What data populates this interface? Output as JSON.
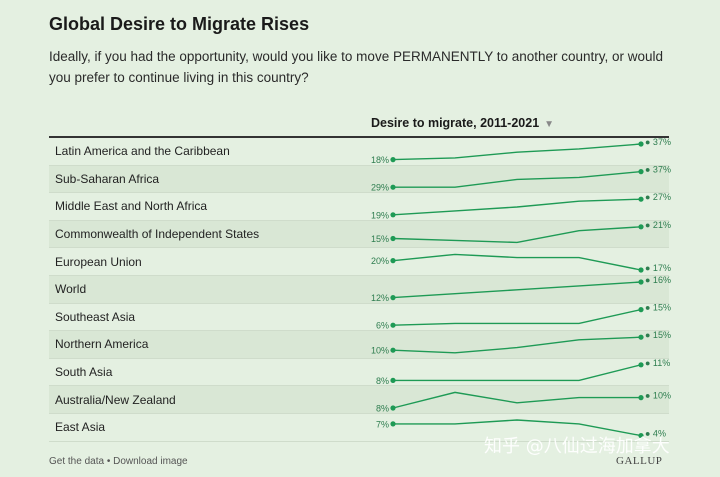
{
  "title": "Global Desire to Migrate Rises",
  "subtitle": "Ideally, if you had the opportunity, would you like to move PERMANENTLY to another country, or would you prefer to continue living in this country?",
  "column_header": "Desire to migrate, 2011-2021",
  "sort_icon": "triangle-down-icon",
  "footer": {
    "get_data": "Get the data",
    "separator": " • ",
    "download": "Download image"
  },
  "watermark": "知乎 @八仙过海加拿大",
  "logo": "GALLUP",
  "colors": {
    "line": "#1e9a55",
    "background": "#e4f0e1",
    "row_shade": "#d9e7d5"
  },
  "chart_data": {
    "type": "line",
    "title": "Global Desire to Migrate Rises",
    "x_points": 5,
    "unit": "%",
    "series": [
      {
        "name": "Latin America and the Caribbean",
        "values": [
          18,
          20,
          27,
          31,
          37
        ],
        "start_label": "18%",
        "end_label": "37%"
      },
      {
        "name": "Sub-Saharan Africa",
        "values": [
          29,
          29,
          33,
          34,
          37
        ],
        "start_label": "29%",
        "end_label": "37%"
      },
      {
        "name": "Middle East and North Africa",
        "values": [
          19,
          21,
          23,
          26,
          27
        ],
        "start_label": "19%",
        "end_label": "27%"
      },
      {
        "name": "Commonwealth of Independent States",
        "values": [
          15,
          14,
          13,
          19,
          21
        ],
        "start_label": "15%",
        "end_label": "21%"
      },
      {
        "name": "European Union",
        "values": [
          20,
          22,
          21,
          21,
          17
        ],
        "start_label": "20%",
        "end_label": "17%"
      },
      {
        "name": "World",
        "values": [
          12,
          13,
          14,
          15,
          16
        ],
        "start_label": "12%",
        "end_label": "16%"
      },
      {
        "name": "Southeast Asia",
        "values": [
          6,
          7,
          7,
          7,
          15
        ],
        "start_label": "6%",
        "end_label": "15%"
      },
      {
        "name": "Northern America",
        "values": [
          10,
          9,
          11,
          14,
          15
        ],
        "start_label": "10%",
        "end_label": "15%"
      },
      {
        "name": "South Asia",
        "values": [
          8,
          8,
          8,
          8,
          11
        ],
        "start_label": "8%",
        "end_label": "11%"
      },
      {
        "name": "Australia/New Zealand",
        "values": [
          8,
          11,
          9,
          10,
          10
        ],
        "start_label": "8%",
        "end_label": "10%"
      },
      {
        "name": "East Asia",
        "values": [
          7,
          7,
          8,
          7,
          4
        ],
        "start_label": "7%",
        "end_label": "4%"
      }
    ]
  }
}
